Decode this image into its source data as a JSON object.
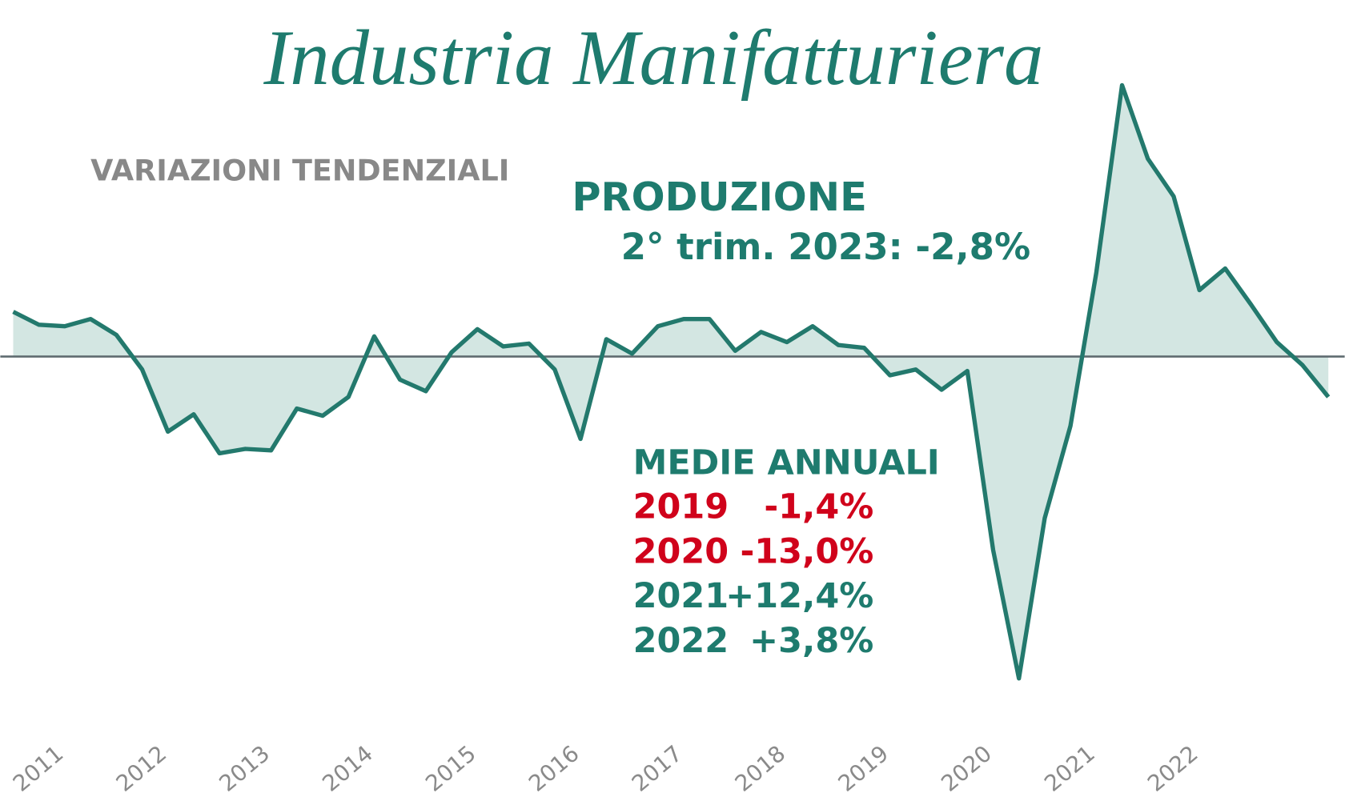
{
  "chart_data": {
    "type": "area",
    "title": "Industria Manifatturiera",
    "subtitle": "VARIAZIONI TENDENZIALI",
    "annotation_title": "PRODUZIONE",
    "annotation_text": "2° trim. 2023: -2,8%",
    "annual_averages": {
      "title": "MEDIE ANNUALI",
      "rows": [
        {
          "year": "2019",
          "label": "-1,4%",
          "color": "#d0021b"
        },
        {
          "year": "2020",
          "label": "-13,0%",
          "color": "#d0021b"
        },
        {
          "year": "2021",
          "label": "+12,4%",
          "color": "#1e7b6e"
        },
        {
          "year": "2022",
          "label": "+3,8%",
          "color": "#1e7b6e"
        }
      ]
    },
    "x": [
      2010.5,
      2010.75,
      2011,
      2011.25,
      2011.5,
      2011.75,
      2012,
      2012.25,
      2012.5,
      2012.75,
      2013,
      2013.25,
      2013.5,
      2013.75,
      2014,
      2014.25,
      2014.5,
      2014.75,
      2015,
      2015.25,
      2015.5,
      2015.75,
      2016,
      2016.25,
      2016.5,
      2016.75,
      2017,
      2017.25,
      2017.5,
      2017.75,
      2018,
      2018.25,
      2018.5,
      2018.75,
      2019,
      2019.25,
      2019.5,
      2019.75,
      2020,
      2020.25,
      2020.5,
      2020.75,
      2021,
      2021.25,
      2021.5,
      2021.75,
      2022,
      2022.25,
      2022.5,
      2022.75,
      2023,
      2023.25
    ],
    "series": [
      {
        "name": "Produzione",
        "color": "#23796d",
        "fill": "#d3e6e2",
        "values": [
          3.1,
          2.2,
          2.1,
          2.6,
          1.5,
          -0.9,
          -5.2,
          -4.0,
          -6.7,
          -6.4,
          -6.5,
          -3.6,
          -4.1,
          -2.8,
          1.4,
          -1.6,
          -2.4,
          0.3,
          1.9,
          0.7,
          0.9,
          -0.9,
          -5.7,
          1.2,
          0.2,
          2.1,
          2.6,
          2.6,
          0.4,
          1.7,
          1.0,
          2.1,
          0.8,
          0.6,
          -1.3,
          -0.9,
          -2.3,
          -1.0,
          -13.4,
          -22.3,
          -11.2,
          -4.8,
          5.8,
          18.8,
          13.7,
          11.1,
          4.6,
          6.1,
          3.6,
          1.0,
          -0.6,
          -2.8
        ]
      }
    ],
    "xlim": [
      2010.5,
      2023.25
    ],
    "ylim": [
      -24,
      22
    ],
    "xticks": [
      2011,
      2012,
      2013,
      2014,
      2015,
      2016,
      2017,
      2018,
      2019,
      2020,
      2021,
      2022
    ]
  }
}
